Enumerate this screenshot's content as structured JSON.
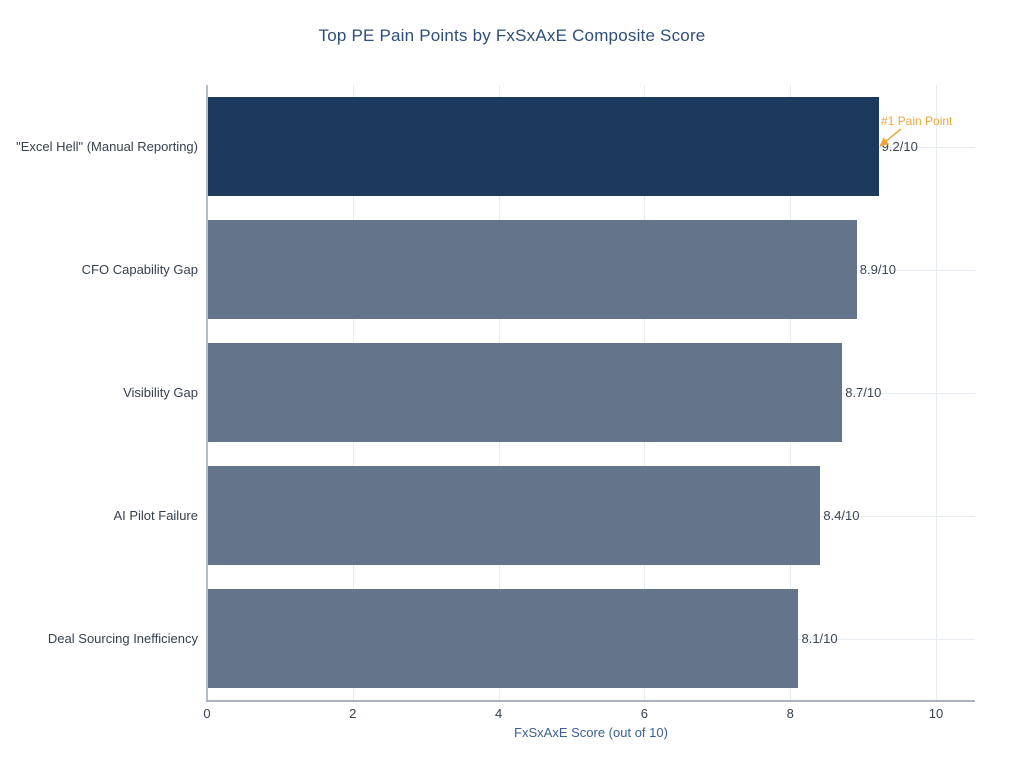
{
  "title": "Top PE Pain Points by FxSxAxE Composite Score",
  "chart_data": {
    "type": "bar",
    "orientation": "horizontal",
    "title": "Top PE Pain Points by FxSxAxE Composite Score",
    "categories": [
      "\"Excel Hell\" (Manual Reporting)",
      "CFO Capability Gap",
      "Visibility Gap",
      "AI Pilot Failure",
      "Deal Sourcing Inefficiency"
    ],
    "values": [
      9.2,
      8.9,
      8.7,
      8.4,
      8.1
    ],
    "value_labels": [
      "9.2/10",
      "8.9/10",
      "8.7/10",
      "8.4/10",
      "8.1/10"
    ],
    "xlabel": "FxSxAxE Score (out of 10)",
    "ylabel": "",
    "xlim": [
      0,
      10.5
    ],
    "xticks": [
      0,
      2,
      4,
      6,
      8,
      10
    ],
    "grid": true,
    "legend": "none",
    "annotation": {
      "text": "#1 Pain Point",
      "target_category": "\"Excel Hell\" (Manual Reporting)",
      "target_value": 9.2
    },
    "colors": {
      "highlight_bar": "#1c3a5e",
      "bar": "#64748b",
      "annotation": "#eda63c",
      "title_text": "#2e4e7c",
      "axis_title_text": "#3a6097",
      "tick_text": "#36404e",
      "value_text": "#3d4755",
      "gridline": "#e7ebf2"
    }
  }
}
